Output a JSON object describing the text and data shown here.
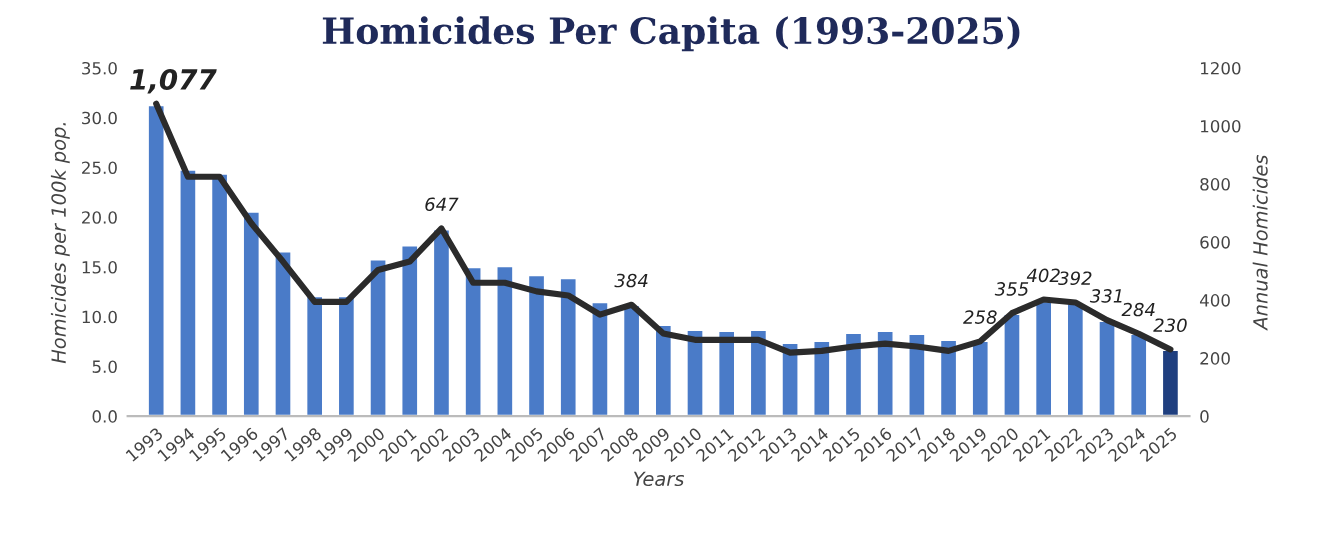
{
  "chart_data": {
    "type": "bar",
    "title": "Homicides Per Capita (1993-2025)",
    "xlabel": "Years",
    "ylabel": "Homicides per 100k pop.",
    "y2label": "Annual Homicides",
    "categories": [
      "1993",
      "1994",
      "1995",
      "1996",
      "1997",
      "1998",
      "1999",
      "2000",
      "2001",
      "2002",
      "2003",
      "2004",
      "2005",
      "2006",
      "2007",
      "2008",
      "2009",
      "2010",
      "2011",
      "2012",
      "2013",
      "2014",
      "2015",
      "2016",
      "2017",
      "2018",
      "2019",
      "2020",
      "2021",
      "2022",
      "2023",
      "2024",
      "2025"
    ],
    "series": [
      {
        "colors": [
          "#4a7bc8",
          "#4a7bc8",
          "#4a7bc8",
          "#4a7bc8",
          "#4a7bc8",
          "#4a7bc8",
          "#4a7bc8",
          "#4a7bc8",
          "#4a7bc8",
          "#4a7bc8",
          "#4a7bc8",
          "#4a7bc8",
          "#4a7bc8",
          "#4a7bc8",
          "#4a7bc8",
          "#4a7bc8",
          "#4a7bc8",
          "#4a7bc8",
          "#4a7bc8",
          "#4a7bc8",
          "#4a7bc8",
          "#4a7bc8",
          "#4a7bc8",
          "#4a7bc8",
          "#4a7bc8",
          "#4a7bc8",
          "#4a7bc8",
          "#4a7bc8",
          "#4a7bc8",
          "#4a7bc8",
          "#4a7bc8",
          "#4a7bc8",
          "#1f3f7f"
        ],
        "values": [
          31.3,
          24.8,
          24.4,
          20.6,
          16.6,
          12.1,
          12.1,
          15.8,
          17.2,
          18.8,
          15.0,
          15.1,
          14.2,
          13.9,
          11.5,
          11.2,
          9.2,
          8.7,
          8.6,
          8.7,
          7.4,
          7.6,
          8.4,
          8.6,
          8.3,
          7.7,
          7.6,
          10.3,
          11.6,
          11.4,
          9.6,
          8.3,
          6.7
        ]
      },
      {
        "type": "line",
        "axis": "y2",
        "color": "#2b2b2b",
        "values": [
          1077,
          825,
          825,
          665,
          533,
          394,
          394,
          504,
          533,
          647,
          460,
          460,
          430,
          416,
          350,
          384,
          285,
          263,
          263,
          263,
          219,
          225,
          240,
          250,
          240,
          225,
          258,
          355,
          402,
          392,
          331,
          284,
          230
        ],
        "value_labels": [
          "1,077",
          null,
          null,
          null,
          null,
          null,
          null,
          null,
          null,
          "647",
          null,
          null,
          null,
          null,
          null,
          "384",
          null,
          null,
          null,
          null,
          null,
          null,
          null,
          null,
          null,
          null,
          "258",
          "355",
          "402",
          "392",
          "331",
          "284",
          "230"
        ]
      }
    ],
    "ylim": [
      0,
      35
    ],
    "yticks": [
      {
        "value": 0,
        "label": "0.0"
      },
      {
        "value": 5,
        "label": "5.0"
      },
      {
        "value": 10,
        "label": "10.0"
      },
      {
        "value": 15,
        "label": "15.0"
      },
      {
        "value": 20,
        "label": "20.0"
      },
      {
        "value": 25,
        "label": "25.0"
      },
      {
        "value": 30,
        "label": "30.0"
      },
      {
        "value": 35,
        "label": "35.0"
      }
    ],
    "y2lim": [
      0,
      1200
    ],
    "y2ticks": [
      0,
      200,
      400,
      600,
      800,
      1000,
      1200
    ],
    "legend": false,
    "grid": false,
    "marker": "none",
    "line_style": "solid"
  }
}
